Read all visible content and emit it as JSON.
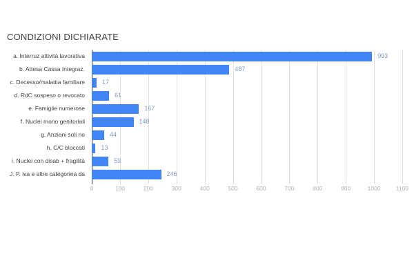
{
  "chart_data": {
    "type": "bar",
    "orientation": "horizontal",
    "title": "CONDIZIONI DICHIARATE",
    "categories": [
      "a. Interruz attività lavorativa",
      "b. Attesa Cassa Integraz.",
      "c. Decesso/malattia familiare",
      "d. RdC sospeso o revocato",
      "e. Famiglie numerose",
      "f. Nuclei mono genitoriali",
      "g. Anziani soli no",
      "h. C/C bloccati",
      "i. Nuclei con disab + fragilità",
      "J. P. iva e altre categoriea da"
    ],
    "values": [
      993,
      487,
      17,
      61,
      167,
      148,
      44,
      13,
      59,
      246
    ],
    "value_labels": [
      "993",
      "487",
      "17",
      "61",
      "167",
      "148",
      "44",
      "13",
      "59",
      "246"
    ],
    "xlabel": "",
    "ylabel": "",
    "xlim": [
      0,
      1100
    ],
    "x_ticks": [
      0,
      100,
      200,
      300,
      400,
      500,
      600,
      700,
      800,
      900,
      1000,
      1100
    ],
    "grid": true,
    "legend": "none",
    "colors": {
      "bar": "#4285f4",
      "value_label": "#849bc1",
      "category_label": "#424242",
      "axis_tick_label": "#b0b0b0",
      "gridline": "#e3e3e3",
      "baseline": "#424242",
      "title": "#3c4043",
      "background": "#ffffff"
    }
  }
}
